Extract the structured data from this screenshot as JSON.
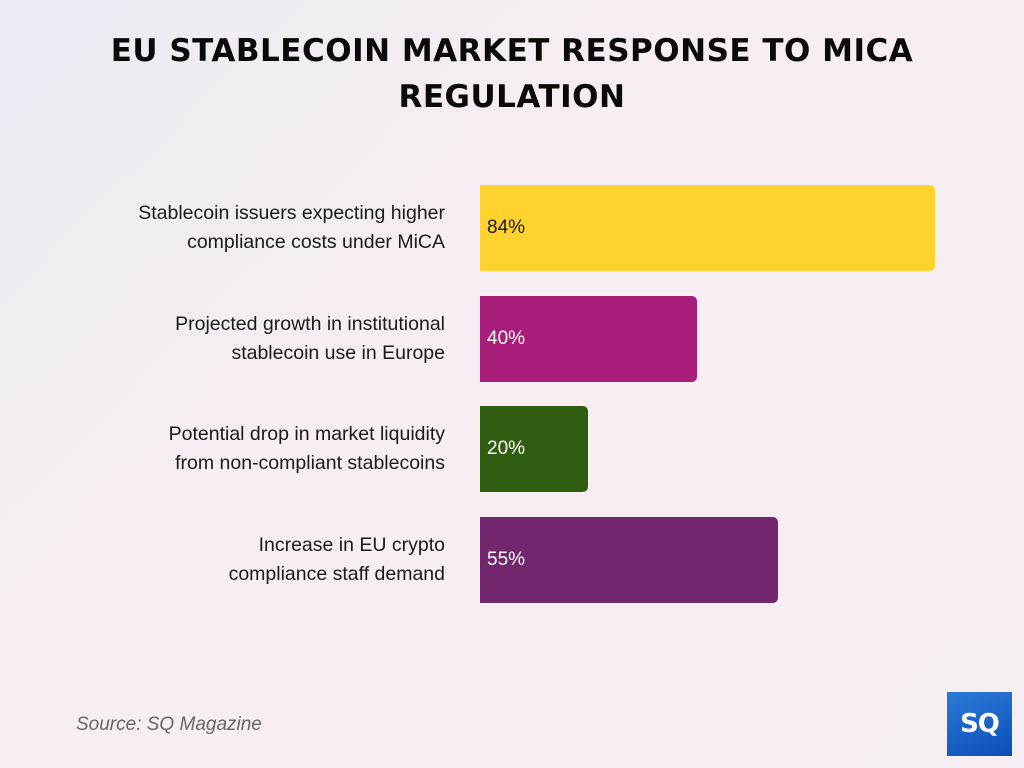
{
  "chart_data": {
    "type": "bar",
    "orientation": "horizontal",
    "title": "EU STABLECOIN MARKET RESPONSE TO MICA REGULATION",
    "categories": [
      "Stablecoin issuers expecting higher compliance costs under MiCA",
      "Projected growth in institutional stablecoin use in Europe",
      "Potential drop in market liquidity from non-compliant stablecoins",
      "Increase in EU crypto compliance staff demand"
    ],
    "category_lines": [
      [
        "Stablecoin issuers expecting higher",
        "compliance costs under MiCA"
      ],
      [
        "Projected growth in institutional",
        "stablecoin use in Europe"
      ],
      [
        "Potential drop in market liquidity",
        "from non-compliant stablecoins"
      ],
      [
        "Increase in EU crypto",
        "compliance staff demand"
      ]
    ],
    "values": [
      84,
      40,
      20,
      55
    ],
    "value_labels": [
      "84%",
      "40%",
      "20%",
      "55%"
    ],
    "colors": [
      "#FFD22E",
      "#A91D7A",
      "#2F5E12",
      "#72266E"
    ],
    "label_colors": [
      "#1a1a1a",
      "#ffffff",
      "#ffffff",
      "#ffffff"
    ],
    "xlim": [
      0,
      100
    ],
    "grid": false,
    "legend": "none"
  },
  "title_lines": [
    "EU STABLECOIN MARKET RESPONSE TO MICA",
    "REGULATION"
  ],
  "source": "Source: SQ Magazine",
  "logo_text": "SQ"
}
